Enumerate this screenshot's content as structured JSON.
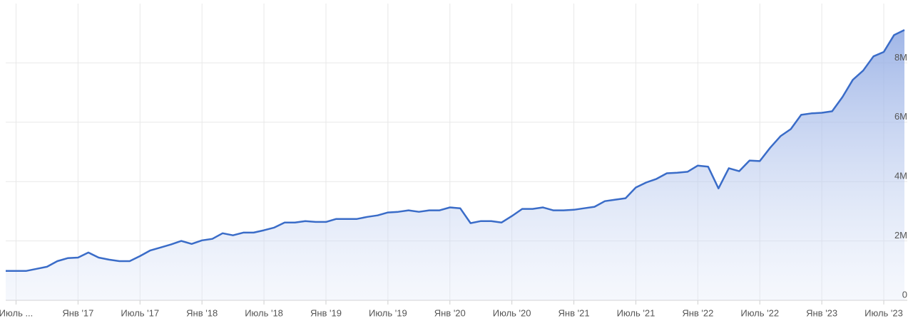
{
  "chart_data": {
    "type": "area",
    "x": [
      "2016-06",
      "2016-07",
      "2016-08",
      "2016-09",
      "2016-10",
      "2016-11",
      "2016-12",
      "2017-01",
      "2017-02",
      "2017-03",
      "2017-04",
      "2017-05",
      "2017-06",
      "2017-07",
      "2017-08",
      "2017-09",
      "2017-10",
      "2017-11",
      "2017-12",
      "2018-01",
      "2018-02",
      "2018-03",
      "2018-04",
      "2018-05",
      "2018-06",
      "2018-07",
      "2018-08",
      "2018-09",
      "2018-10",
      "2018-11",
      "2018-12",
      "2019-01",
      "2019-02",
      "2019-03",
      "2019-04",
      "2019-05",
      "2019-06",
      "2019-07",
      "2019-08",
      "2019-09",
      "2019-10",
      "2019-11",
      "2019-12",
      "2020-01",
      "2020-02",
      "2020-03",
      "2020-04",
      "2020-05",
      "2020-06",
      "2020-07",
      "2020-08",
      "2020-09",
      "2020-10",
      "2020-11",
      "2020-12",
      "2021-01",
      "2021-02",
      "2021-03",
      "2021-04",
      "2021-05",
      "2021-06",
      "2021-07",
      "2021-08",
      "2021-09",
      "2021-10",
      "2021-11",
      "2021-12",
      "2022-01",
      "2022-02",
      "2022-03",
      "2022-04",
      "2022-05",
      "2022-06",
      "2022-07",
      "2022-08",
      "2022-09",
      "2022-10",
      "2022-11",
      "2022-12",
      "2023-01",
      "2023-02",
      "2023-03",
      "2023-04",
      "2023-05",
      "2023-06",
      "2023-07",
      "2023-08",
      "2023-09"
    ],
    "values": [
      990000,
      990000,
      990000,
      1060000,
      1130000,
      1320000,
      1420000,
      1440000,
      1610000,
      1440000,
      1370000,
      1320000,
      1320000,
      1490000,
      1680000,
      1780000,
      1880000,
      2000000,
      1900000,
      2020000,
      2070000,
      2260000,
      2190000,
      2280000,
      2280000,
      2360000,
      2450000,
      2620000,
      2620000,
      2670000,
      2640000,
      2640000,
      2740000,
      2740000,
      2740000,
      2810000,
      2860000,
      2960000,
      2980000,
      3030000,
      2980000,
      3030000,
      3030000,
      3130000,
      3100000,
      2600000,
      2670000,
      2670000,
      2620000,
      2840000,
      3080000,
      3080000,
      3130000,
      3030000,
      3030000,
      3050000,
      3100000,
      3150000,
      3340000,
      3390000,
      3440000,
      3800000,
      3970000,
      4090000,
      4280000,
      4300000,
      4330000,
      4540000,
      4500000,
      3770000,
      4450000,
      4350000,
      4710000,
      4690000,
      5140000,
      5530000,
      5770000,
      6250000,
      6300000,
      6320000,
      6370000,
      6850000,
      7430000,
      7740000,
      8220000,
      8370000,
      8940000,
      9110000
    ],
    "color": "#3a6cc8",
    "xlim": [
      "2016-06",
      "2023-09"
    ],
    "xticks": [
      {
        "value": "2016-07",
        "label": "Июль ..."
      },
      {
        "value": "2017-01",
        "label": "Янв '17"
      },
      {
        "value": "2017-07",
        "label": "Июль '17"
      },
      {
        "value": "2018-01",
        "label": "Янв '18"
      },
      {
        "value": "2018-07",
        "label": "Июль '18"
      },
      {
        "value": "2019-01",
        "label": "Янв '19"
      },
      {
        "value": "2019-07",
        "label": "Июль '19"
      },
      {
        "value": "2020-01",
        "label": "Янв '20"
      },
      {
        "value": "2020-07",
        "label": "Июль '20"
      },
      {
        "value": "2021-01",
        "label": "Янв '21"
      },
      {
        "value": "2021-07",
        "label": "Июль '21"
      },
      {
        "value": "2022-01",
        "label": "Янв '22"
      },
      {
        "value": "2022-07",
        "label": "Июль '22"
      },
      {
        "value": "2023-01",
        "label": "Янв '23"
      },
      {
        "value": "2023-07",
        "label": "Июль '23"
      }
    ],
    "ylim": [
      0,
      10000000
    ],
    "yticks": [
      0,
      {
        "value": 2000000,
        "label": "2M"
      },
      {
        "value": 4000000,
        "label": "4M"
      },
      {
        "value": 6000000,
        "label": "6M"
      },
      {
        "value": 8000000,
        "label": "8M"
      }
    ],
    "grid": true
  }
}
